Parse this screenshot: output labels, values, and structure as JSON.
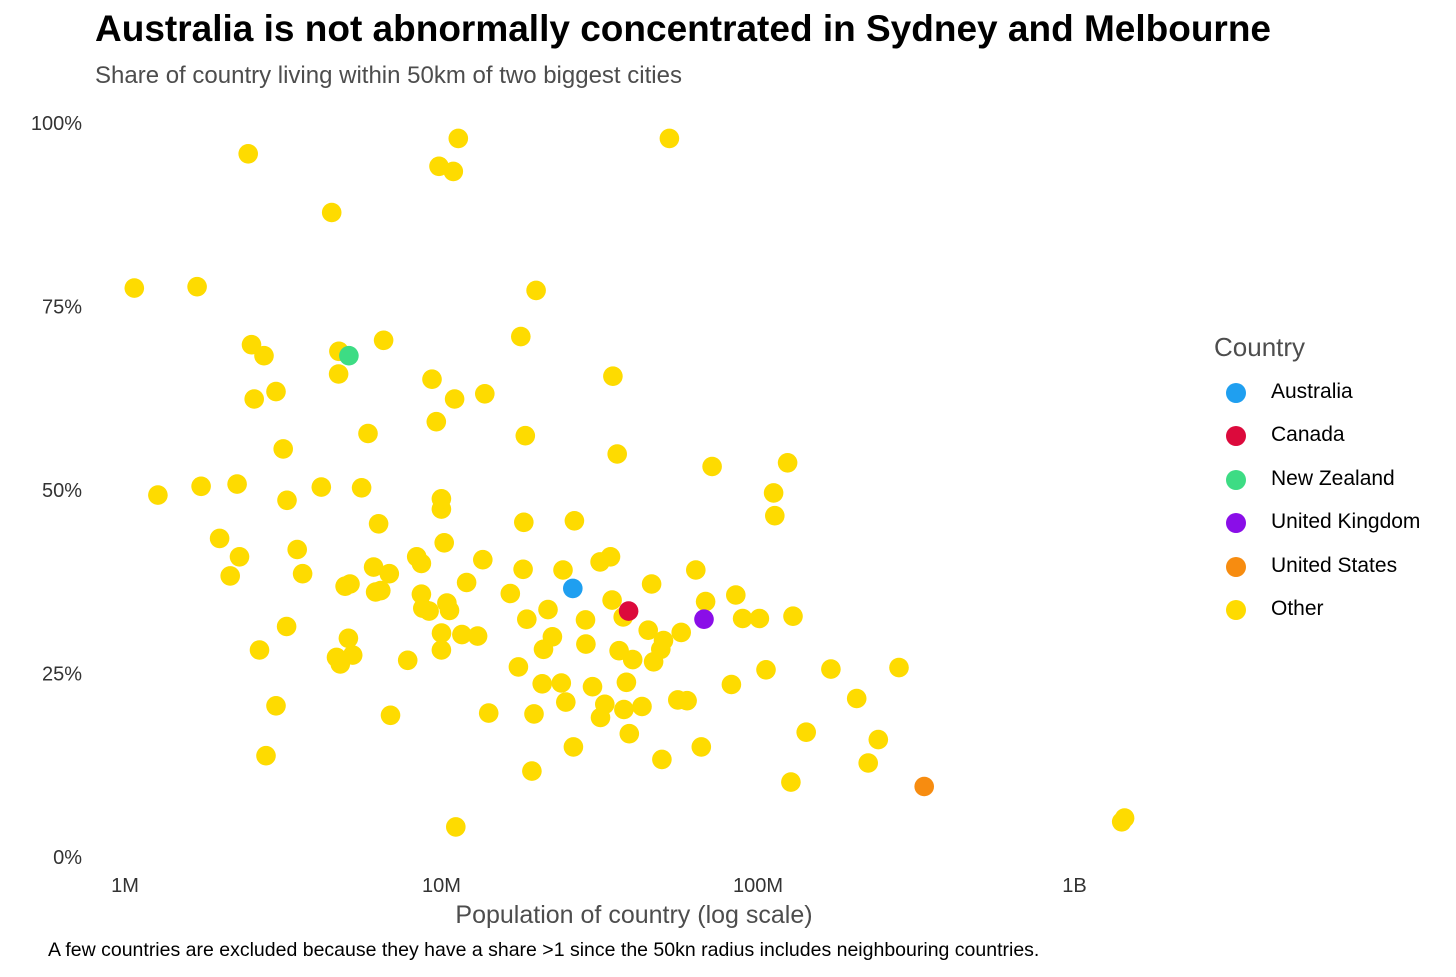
{
  "chart_data": {
    "type": "scatter",
    "title": "Australia is not abnormally concentrated in Sydney and Melbourne",
    "subtitle": "Share of country living within 50km of two biggest cities",
    "xlabel": "Population of country (log scale)",
    "ylabel": "",
    "caption": "A few countries are excluded because they have a share >1 since the 50kn radius includes neighbouring countries.",
    "x_scale": "log",
    "xlim": [
      800000,
      2000000000
    ],
    "ylim": [
      0,
      1
    ],
    "x_ticks": [
      {
        "value": 1000000,
        "label": "1M"
      },
      {
        "value": 10000000,
        "label": "10M"
      },
      {
        "value": 100000000,
        "label": "100M"
      },
      {
        "value": 1000000000,
        "label": "1B"
      }
    ],
    "y_ticks": [
      {
        "value": 0,
        "label": "0%"
      },
      {
        "value": 0.25,
        "label": "25%"
      },
      {
        "value": 0.5,
        "label": "50%"
      },
      {
        "value": 0.75,
        "label": "75%"
      },
      {
        "value": 1,
        "label": "100%"
      }
    ],
    "legend": {
      "title": "Country",
      "entries": [
        {
          "name": "Australia",
          "color": "#1f9ff0"
        },
        {
          "name": "Canada",
          "color": "#dc0a3c"
        },
        {
          "name": "New Zealand",
          "color": "#3ddc84"
        },
        {
          "name": "United Kingdom",
          "color": "#8a0ee8"
        },
        {
          "name": "United States",
          "color": "#f78c10"
        },
        {
          "name": "Other",
          "color": "#fedb00"
        }
      ]
    },
    "series": [
      {
        "name": "Other",
        "color": "#fedb00",
        "points": [
          [
            1070000,
            0.775
          ],
          [
            1270000,
            0.493
          ],
          [
            1690000,
            0.777
          ],
          [
            1740000,
            0.505
          ],
          [
            1990000,
            0.434
          ],
          [
            2150000,
            0.383
          ],
          [
            2260000,
            0.508
          ],
          [
            2300000,
            0.409
          ],
          [
            2450000,
            0.958
          ],
          [
            2510000,
            0.698
          ],
          [
            2560000,
            0.624
          ],
          [
            2660000,
            0.282
          ],
          [
            2750000,
            0.683
          ],
          [
            2790000,
            0.138
          ],
          [
            3000000,
            0.634
          ],
          [
            3000000,
            0.206
          ],
          [
            3160000,
            0.556
          ],
          [
            3240000,
            0.314
          ],
          [
            3250000,
            0.486
          ],
          [
            3500000,
            0.419
          ],
          [
            3640000,
            0.386
          ],
          [
            4170000,
            0.504
          ],
          [
            4500000,
            0.878
          ],
          [
            4660000,
            0.272
          ],
          [
            4730000,
            0.658
          ],
          [
            4740000,
            0.689
          ],
          [
            4790000,
            0.263
          ],
          [
            4960000,
            0.369
          ],
          [
            5080000,
            0.298
          ],
          [
            5140000,
            0.372
          ],
          [
            5240000,
            0.275
          ],
          [
            5590000,
            0.503
          ],
          [
            5860000,
            0.577
          ],
          [
            6100000,
            0.395
          ],
          [
            6190000,
            0.361
          ],
          [
            6330000,
            0.454
          ],
          [
            6430000,
            0.363
          ],
          [
            6560000,
            0.704
          ],
          [
            6840000,
            0.386
          ],
          [
            6900000,
            0.193
          ],
          [
            7820000,
            0.268
          ],
          [
            8350000,
            0.409
          ],
          [
            8640000,
            0.4
          ],
          [
            8640000,
            0.358
          ],
          [
            8730000,
            0.339
          ],
          [
            9140000,
            0.335
          ],
          [
            9330000,
            0.651
          ],
          [
            9630000,
            0.593
          ],
          [
            9820000,
            0.941
          ],
          [
            9990000,
            0.474
          ],
          [
            9990000,
            0.488
          ],
          [
            9990000,
            0.282
          ],
          [
            10000000,
            0.305
          ],
          [
            10200000,
            0.428
          ],
          [
            10400000,
            0.346
          ],
          [
            10600000,
            0.336
          ],
          [
            10900000,
            0.934
          ],
          [
            11000000,
            0.624
          ],
          [
            11100000,
            0.041
          ],
          [
            11300000,
            0.979
          ],
          [
            11600000,
            0.303
          ],
          [
            12000000,
            0.374
          ],
          [
            13000000,
            0.301
          ],
          [
            13500000,
            0.405
          ],
          [
            13700000,
            0.631
          ],
          [
            14100000,
            0.196
          ],
          [
            16500000,
            0.359
          ],
          [
            17500000,
            0.259
          ],
          [
            17800000,
            0.709
          ],
          [
            18100000,
            0.392
          ],
          [
            18200000,
            0.456
          ],
          [
            18400000,
            0.574
          ],
          [
            18600000,
            0.324
          ],
          [
            19300000,
            0.117
          ],
          [
            19600000,
            0.195
          ],
          [
            19900000,
            0.772
          ],
          [
            20800000,
            0.236
          ],
          [
            21000000,
            0.283
          ],
          [
            21700000,
            0.337
          ],
          [
            22400000,
            0.3
          ],
          [
            23900000,
            0.237
          ],
          [
            24200000,
            0.391
          ],
          [
            24700000,
            0.211
          ],
          [
            26100000,
            0.15
          ],
          [
            26300000,
            0.458
          ],
          [
            28500000,
            0.323
          ],
          [
            28600000,
            0.29
          ],
          [
            30000000,
            0.232
          ],
          [
            31700000,
            0.402
          ],
          [
            31800000,
            0.19
          ],
          [
            32800000,
            0.208
          ],
          [
            34200000,
            0.409
          ],
          [
            34600000,
            0.35
          ],
          [
            34800000,
            0.655
          ],
          [
            35900000,
            0.549
          ],
          [
            36400000,
            0.281
          ],
          [
            37500000,
            0.327
          ],
          [
            37700000,
            0.201
          ],
          [
            38400000,
            0.238
          ],
          [
            39200000,
            0.168
          ],
          [
            40200000,
            0.269
          ],
          [
            43000000,
            0.205
          ],
          [
            45000000,
            0.309
          ],
          [
            46100000,
            0.372
          ],
          [
            46800000,
            0.266
          ],
          [
            49300000,
            0.283
          ],
          [
            49700000,
            0.133
          ],
          [
            50300000,
            0.295
          ],
          [
            52500000,
            0.979
          ],
          [
            55800000,
            0.214
          ],
          [
            57200000,
            0.306
          ],
          [
            59700000,
            0.213
          ],
          [
            63600000,
            0.391
          ],
          [
            66200000,
            0.15
          ],
          [
            68300000,
            0.348
          ],
          [
            71600000,
            0.532
          ],
          [
            82400000,
            0.235
          ],
          [
            85100000,
            0.357
          ],
          [
            89400000,
            0.325
          ],
          [
            101000000,
            0.325
          ],
          [
            106000000,
            0.255
          ],
          [
            112000000,
            0.496
          ],
          [
            113000000,
            0.465
          ],
          [
            124000000,
            0.537
          ],
          [
            127000000,
            0.102
          ],
          [
            129000000,
            0.328
          ],
          [
            142000000,
            0.17
          ],
          [
            170000000,
            0.256
          ],
          [
            205000000,
            0.216
          ],
          [
            223000000,
            0.128
          ],
          [
            240000000,
            0.16
          ],
          [
            279000000,
            0.258
          ],
          [
            1410000000,
            0.048
          ],
          [
            1440000000,
            0.053
          ]
        ]
      },
      {
        "name": "Australia",
        "color": "#1f9ff0",
        "points": [
          [
            26000000,
            0.366
          ]
        ]
      },
      {
        "name": "Canada",
        "color": "#dc0a3c",
        "points": [
          [
            39000000,
            0.335
          ]
        ]
      },
      {
        "name": "New Zealand",
        "color": "#3ddc84",
        "points": [
          [
            5100000,
            0.683
          ]
        ]
      },
      {
        "name": "United Kingdom",
        "color": "#8a0ee8",
        "points": [
          [
            67500000,
            0.324
          ]
        ]
      },
      {
        "name": "United States",
        "color": "#f78c10",
        "points": [
          [
            335000000,
            0.096
          ]
        ]
      }
    ]
  }
}
